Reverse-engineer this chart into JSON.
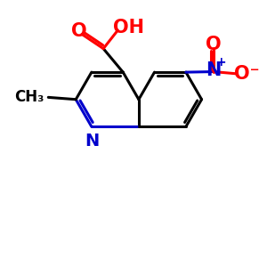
{
  "bond_color": "#000000",
  "n_color": "#0000cc",
  "o_color": "#ff0000",
  "bg_color": "#ffffff",
  "bond_width": 2.2,
  "font_size_label": 14,
  "font_size_small": 11,
  "xlim": [
    0,
    10
  ],
  "ylim": [
    0,
    10
  ]
}
